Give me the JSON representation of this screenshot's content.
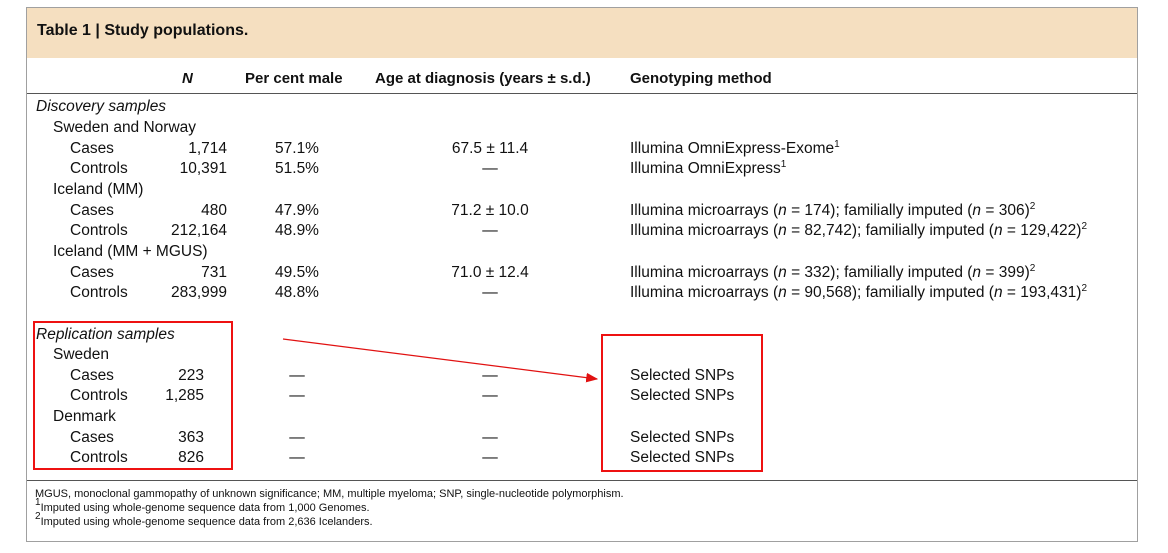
{
  "title": "Table 1 | Study populations.",
  "headers": {
    "n": "N",
    "male": "Per cent male",
    "age": "Age at diagnosis (years ± s.d.)",
    "method": "Genotyping method"
  },
  "discovery": {
    "label": "Discovery samples",
    "sweden_norway": {
      "label": "Sweden and Norway",
      "cases": {
        "label": "Cases",
        "n": "1,714",
        "male": "57.1%",
        "age": "67.5 ± 11.4",
        "method": "Illumina OmniExpress-Exome",
        "sup": "1"
      },
      "controls": {
        "label": "Controls",
        "n": "10,391",
        "male": "51.5%",
        "age": "—",
        "method": "Illumina OmniExpress",
        "sup": "1"
      }
    },
    "iceland_mm": {
      "label": "Iceland (MM)",
      "cases": {
        "label": "Cases",
        "n": "480",
        "male": "47.9%",
        "age": "71.2 ± 10.0",
        "m1": "Illumina microarrays (",
        "na": "n",
        "m2": " = 174); familially imputed (",
        "nb": "n",
        "m3": " = 306)",
        "sup": "2"
      },
      "controls": {
        "label": "Controls",
        "n": "212,164",
        "male": "48.9%",
        "age": "—",
        "m1": "Illumina microarrays (",
        "na": "n",
        "m2": " = 82,742); familially imputed (",
        "nb": "n",
        "m3": " = 129,422)",
        "sup": "2"
      }
    },
    "iceland_mgus": {
      "label": "Iceland (MM + MGUS)",
      "cases": {
        "label": "Cases",
        "n": "731",
        "male": "49.5%",
        "age": "71.0 ± 12.4",
        "m1": "Illumina microarrays (",
        "na": "n",
        "m2": " = 332); familially imputed (",
        "nb": "n",
        "m3": " = 399)",
        "sup": "2"
      },
      "controls": {
        "label": "Controls",
        "n": "283,999",
        "male": "48.8%",
        "age": "—",
        "m1": "Illumina microarrays (",
        "na": "n",
        "m2": " = 90,568); familially imputed (",
        "nb": "n",
        "m3": " = 193,431)",
        "sup": "2"
      }
    }
  },
  "replication": {
    "label": "Replication samples",
    "sweden": {
      "label": "Sweden",
      "cases": {
        "label": "Cases",
        "n": "223",
        "male": "—",
        "age": "—",
        "method": "Selected SNPs"
      },
      "controls": {
        "label": "Controls",
        "n": "1,285",
        "male": "—",
        "age": "—",
        "method": "Selected SNPs"
      }
    },
    "denmark": {
      "label": "Denmark",
      "cases": {
        "label": "Cases",
        "n": "363",
        "male": "—",
        "age": "—",
        "method": "Selected SNPs"
      },
      "controls": {
        "label": "Controls",
        "n": "826",
        "male": "—",
        "age": "—",
        "method": "Selected SNPs"
      }
    }
  },
  "footnotes": {
    "abbrev": "MGUS, monoclonal gammopathy of unknown significance; MM, multiple myeloma; SNP, single-nucleotide polymorphism.",
    "f1_sup": "1",
    "f1": "Imputed using whole-genome sequence data from 1,000 Genomes.",
    "f2_sup": "2",
    "f2": "Imputed using whole-genome sequence data from 2,636 Icelanders."
  },
  "annotation_color": "#e11111"
}
